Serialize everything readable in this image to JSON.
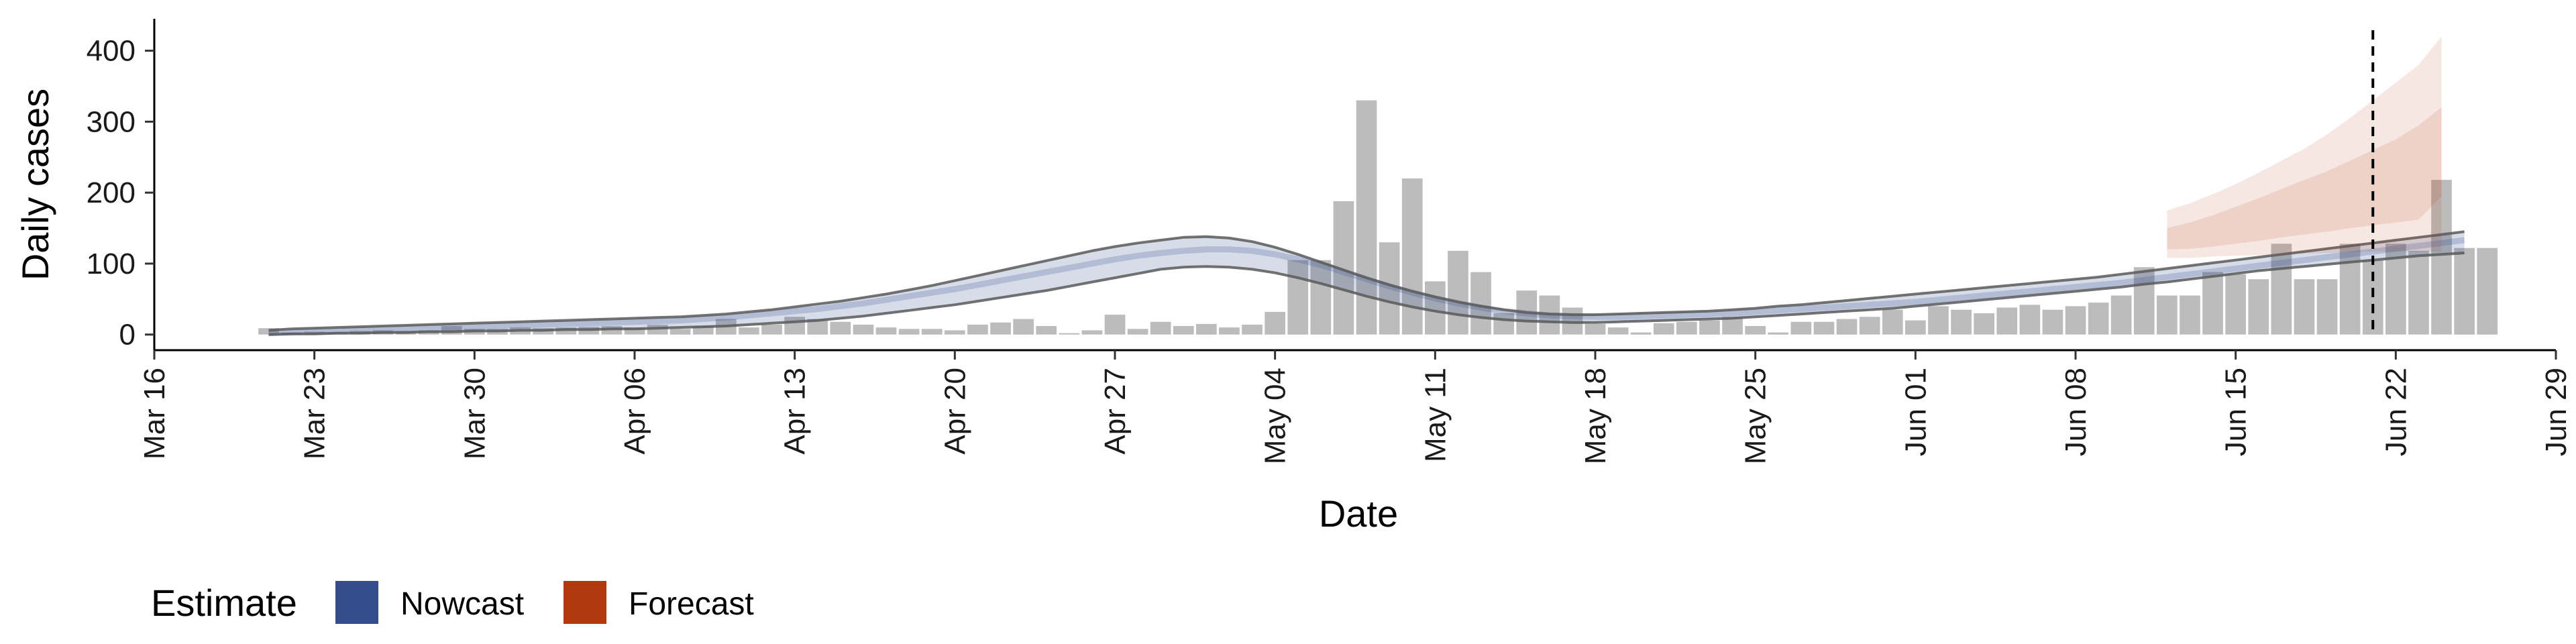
{
  "chart_data": {
    "type": "bar",
    "xlabel": "Date",
    "ylabel": "Daily cases",
    "x_ticks": [
      "Mar 16",
      "Mar 23",
      "Mar 30",
      "Apr 06",
      "Apr 13",
      "Apr 20",
      "Apr 27",
      "May 04",
      "May 11",
      "May 18",
      "May 25",
      "Jun 01",
      "Jun 08",
      "Jun 15",
      "Jun 22",
      "Jun 29"
    ],
    "x_tick_dates": [
      "2020-03-16",
      "2020-03-23",
      "2020-03-30",
      "2020-04-06",
      "2020-04-13",
      "2020-04-20",
      "2020-04-27",
      "2020-05-04",
      "2020-05-11",
      "2020-05-18",
      "2020-05-25",
      "2020-06-01",
      "2020-06-08",
      "2020-06-15",
      "2020-06-22",
      "2020-06-29"
    ],
    "y_ticks": [
      0,
      100,
      200,
      300,
      400
    ],
    "xlim": [
      "2020-03-16",
      "2020-06-29"
    ],
    "ylim": [
      -22,
      445
    ],
    "grid": false,
    "legend_position": "bottom-left",
    "bars": {
      "start_date": "2020-03-21",
      "color": "#a6a6a6",
      "values": [
        9,
        3,
        4,
        3,
        5,
        6,
        5,
        6,
        12,
        8,
        8,
        10,
        9,
        10,
        11,
        12,
        10,
        14,
        8,
        12,
        22,
        10,
        14,
        25,
        22,
        18,
        14,
        10,
        8,
        8,
        6,
        14,
        17,
        22,
        12,
        2,
        6,
        28,
        8,
        18,
        12,
        15,
        10,
        14,
        32,
        105,
        105,
        188,
        330,
        130,
        220,
        75,
        118,
        88,
        30,
        62,
        55,
        38,
        15,
        10,
        3,
        16,
        18,
        20,
        25,
        12,
        3,
        18,
        18,
        22,
        25,
        35,
        20,
        40,
        35,
        30,
        38,
        42,
        35,
        40,
        45,
        55,
        95,
        55,
        55,
        88,
        85,
        78,
        128,
        78,
        78,
        128,
        105,
        128,
        118,
        218,
        122,
        122
      ]
    },
    "series": [
      {
        "name": "Nowcast",
        "color": "#344e8b",
        "start_date": "2020-03-21",
        "median": [
          2,
          3,
          4,
          5,
          6,
          7,
          8,
          9,
          10,
          11,
          12,
          13,
          14,
          15,
          16,
          17,
          18,
          19,
          20,
          22,
          24,
          27,
          30,
          33,
          36,
          40,
          44,
          49,
          54,
          59,
          64,
          70,
          76,
          82,
          88,
          94,
          100,
          106,
          111,
          115,
          118,
          120,
          120,
          118,
          113,
          106,
          98,
          88,
          78,
          68,
          59,
          51,
          44,
          38,
          33,
          30,
          27,
          26,
          25,
          25,
          26,
          27,
          28,
          29,
          30,
          32,
          34,
          36,
          38,
          40,
          42,
          44,
          46,
          49,
          52,
          55,
          58,
          61,
          64,
          67,
          70,
          73,
          77,
          81,
          85,
          89,
          93,
          97,
          101,
          105,
          109,
          113,
          117,
          121,
          125,
          129,
          133
        ],
        "ci90_lower": [
          0,
          1,
          1,
          2,
          2,
          3,
          3,
          4,
          4,
          5,
          5,
          6,
          6,
          7,
          7,
          8,
          8,
          9,
          10,
          11,
          12,
          14,
          16,
          18,
          20,
          23,
          26,
          30,
          34,
          38,
          42,
          47,
          52,
          57,
          62,
          68,
          74,
          80,
          86,
          92,
          95,
          96,
          95,
          92,
          87,
          80,
          72,
          63,
          54,
          46,
          39,
          33,
          28,
          24,
          21,
          19,
          18,
          17,
          17,
          18,
          19,
          20,
          21,
          22,
          23,
          25,
          27,
          29,
          31,
          33,
          35,
          37,
          40,
          43,
          46,
          49,
          52,
          55,
          58,
          61,
          64,
          67,
          71,
          74,
          78,
          82,
          86,
          90,
          93,
          96,
          99,
          102,
          105,
          108,
          111,
          113,
          115
        ],
        "ci90_upper": [
          6,
          8,
          9,
          10,
          11,
          12,
          13,
          14,
          15,
          16,
          17,
          18,
          19,
          20,
          21,
          22,
          23,
          24,
          25,
          27,
          29,
          32,
          35,
          39,
          43,
          47,
          52,
          57,
          63,
          69,
          76,
          83,
          90,
          97,
          104,
          111,
          118,
          124,
          129,
          133,
          137,
          138,
          136,
          131,
          123,
          113,
          102,
          91,
          80,
          70,
          61,
          53,
          46,
          40,
          35,
          31,
          29,
          28,
          28,
          29,
          30,
          31,
          32,
          33,
          35,
          37,
          40,
          42,
          45,
          48,
          51,
          54,
          57,
          60,
          63,
          66,
          69,
          72,
          75,
          78,
          81,
          85,
          89,
          93,
          97,
          101,
          105,
          109,
          113,
          117,
          121,
          125,
          129,
          133,
          137,
          141,
          145
        ]
      },
      {
        "name": "Forecast",
        "color": "#b2390f",
        "start_date": "2020-06-12",
        "median": [
          130,
          135,
          142,
          150,
          158,
          166,
          175,
          184,
          194,
          204,
          214,
          224,
          236
        ],
        "ci50_lower": [
          120,
          121,
          124,
          128,
          132,
          137,
          141,
          145,
          150,
          154,
          158,
          162,
          195
        ],
        "ci50_upper": [
          150,
          158,
          168,
          180,
          192,
          205,
          218,
          230,
          245,
          260,
          275,
          295,
          320
        ],
        "ci90_lower": [
          108,
          108,
          110,
          111,
          112,
          113,
          114,
          115,
          116,
          117,
          117,
          117,
          117
        ],
        "ci90_upper": [
          175,
          185,
          198,
          212,
          228,
          245,
          262,
          282,
          305,
          330,
          355,
          380,
          420
        ]
      }
    ],
    "vertical_reference_line": {
      "date": "2020-06-21",
      "style": "dashed",
      "color": "#000000"
    }
  },
  "legend": {
    "title": "Estimate",
    "items": [
      {
        "label": "Nowcast",
        "color": "#344e8b"
      },
      {
        "label": "Forecast",
        "color": "#b2390f"
      }
    ]
  }
}
